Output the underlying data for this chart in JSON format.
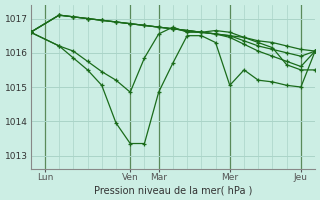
{
  "background_color": "#cceee4",
  "grid_color": "#aad4c8",
  "line_color": "#1a6b1a",
  "marker_color": "#1a6b1a",
  "xlabel_text": "Pression niveau de la mer( hPa )",
  "ylim": [
    1012.6,
    1017.4
  ],
  "yticks": [
    1013,
    1014,
    1015,
    1016,
    1017
  ],
  "xlim": [
    0,
    20
  ],
  "vline_positions": [
    1,
    7,
    9,
    14,
    19
  ],
  "xtick_positions": [
    1,
    7,
    9,
    14,
    19
  ],
  "xtick_labels": [
    "Lun",
    "Ven",
    "Mar",
    "Mer",
    "Jeu"
  ],
  "series": {
    "s1_x": [
      0,
      2,
      3,
      4,
      5,
      6,
      7,
      8,
      9,
      10,
      11,
      12,
      13,
      14,
      15,
      16,
      17,
      18,
      19,
      20
    ],
    "s1_y": [
      1016.6,
      1017.1,
      1017.05,
      1017.0,
      1016.95,
      1016.9,
      1016.85,
      1016.8,
      1016.75,
      1016.7,
      1016.65,
      1016.6,
      1016.55,
      1016.5,
      1016.45,
      1016.35,
      1016.3,
      1016.2,
      1016.1,
      1016.05
    ],
    "s2_x": [
      0,
      2,
      3,
      4,
      5,
      6,
      7,
      8,
      9,
      10,
      11,
      12,
      13,
      14,
      15,
      16,
      17,
      18,
      19,
      20
    ],
    "s2_y": [
      1016.6,
      1017.1,
      1017.05,
      1017.0,
      1016.95,
      1016.9,
      1016.85,
      1016.8,
      1016.75,
      1016.7,
      1016.65,
      1016.6,
      1016.55,
      1016.5,
      1016.35,
      1016.2,
      1016.1,
      1016.0,
      1015.9,
      1016.05
    ],
    "s3_x": [
      0,
      2,
      3,
      4,
      5,
      6,
      7,
      8,
      9,
      10,
      11,
      12,
      13,
      14,
      15,
      16,
      17,
      18,
      19,
      20
    ],
    "s3_y": [
      1016.6,
      1017.1,
      1017.05,
      1017.0,
      1016.95,
      1016.9,
      1016.85,
      1016.8,
      1016.75,
      1016.7,
      1016.65,
      1016.6,
      1016.55,
      1016.45,
      1016.25,
      1016.05,
      1015.9,
      1015.75,
      1015.6,
      1016.05
    ],
    "s4_x": [
      0,
      2,
      3,
      4,
      5,
      6,
      7,
      8,
      9,
      10,
      11,
      12,
      13,
      14,
      15,
      16,
      17,
      18,
      19,
      20
    ],
    "s4_y": [
      1016.6,
      1016.2,
      1016.05,
      1015.75,
      1015.45,
      1015.2,
      1014.85,
      1015.85,
      1016.55,
      1016.75,
      1016.6,
      1016.6,
      1016.65,
      1016.6,
      1016.45,
      1016.3,
      1016.15,
      1015.65,
      1015.5,
      1015.5
    ],
    "s5_x": [
      0,
      2,
      3,
      4,
      5,
      6,
      7,
      8,
      9,
      10,
      11,
      12,
      13,
      14,
      15,
      16,
      17,
      18,
      19,
      20
    ],
    "s5_y": [
      1016.6,
      1016.2,
      1015.85,
      1015.5,
      1015.05,
      1013.95,
      1013.35,
      1013.35,
      1014.85,
      1015.7,
      1016.5,
      1016.5,
      1016.3,
      1015.05,
      1015.5,
      1015.2,
      1015.15,
      1015.05,
      1015.0,
      1016.05
    ]
  },
  "figsize": [
    3.2,
    2.0
  ],
  "dpi": 100
}
